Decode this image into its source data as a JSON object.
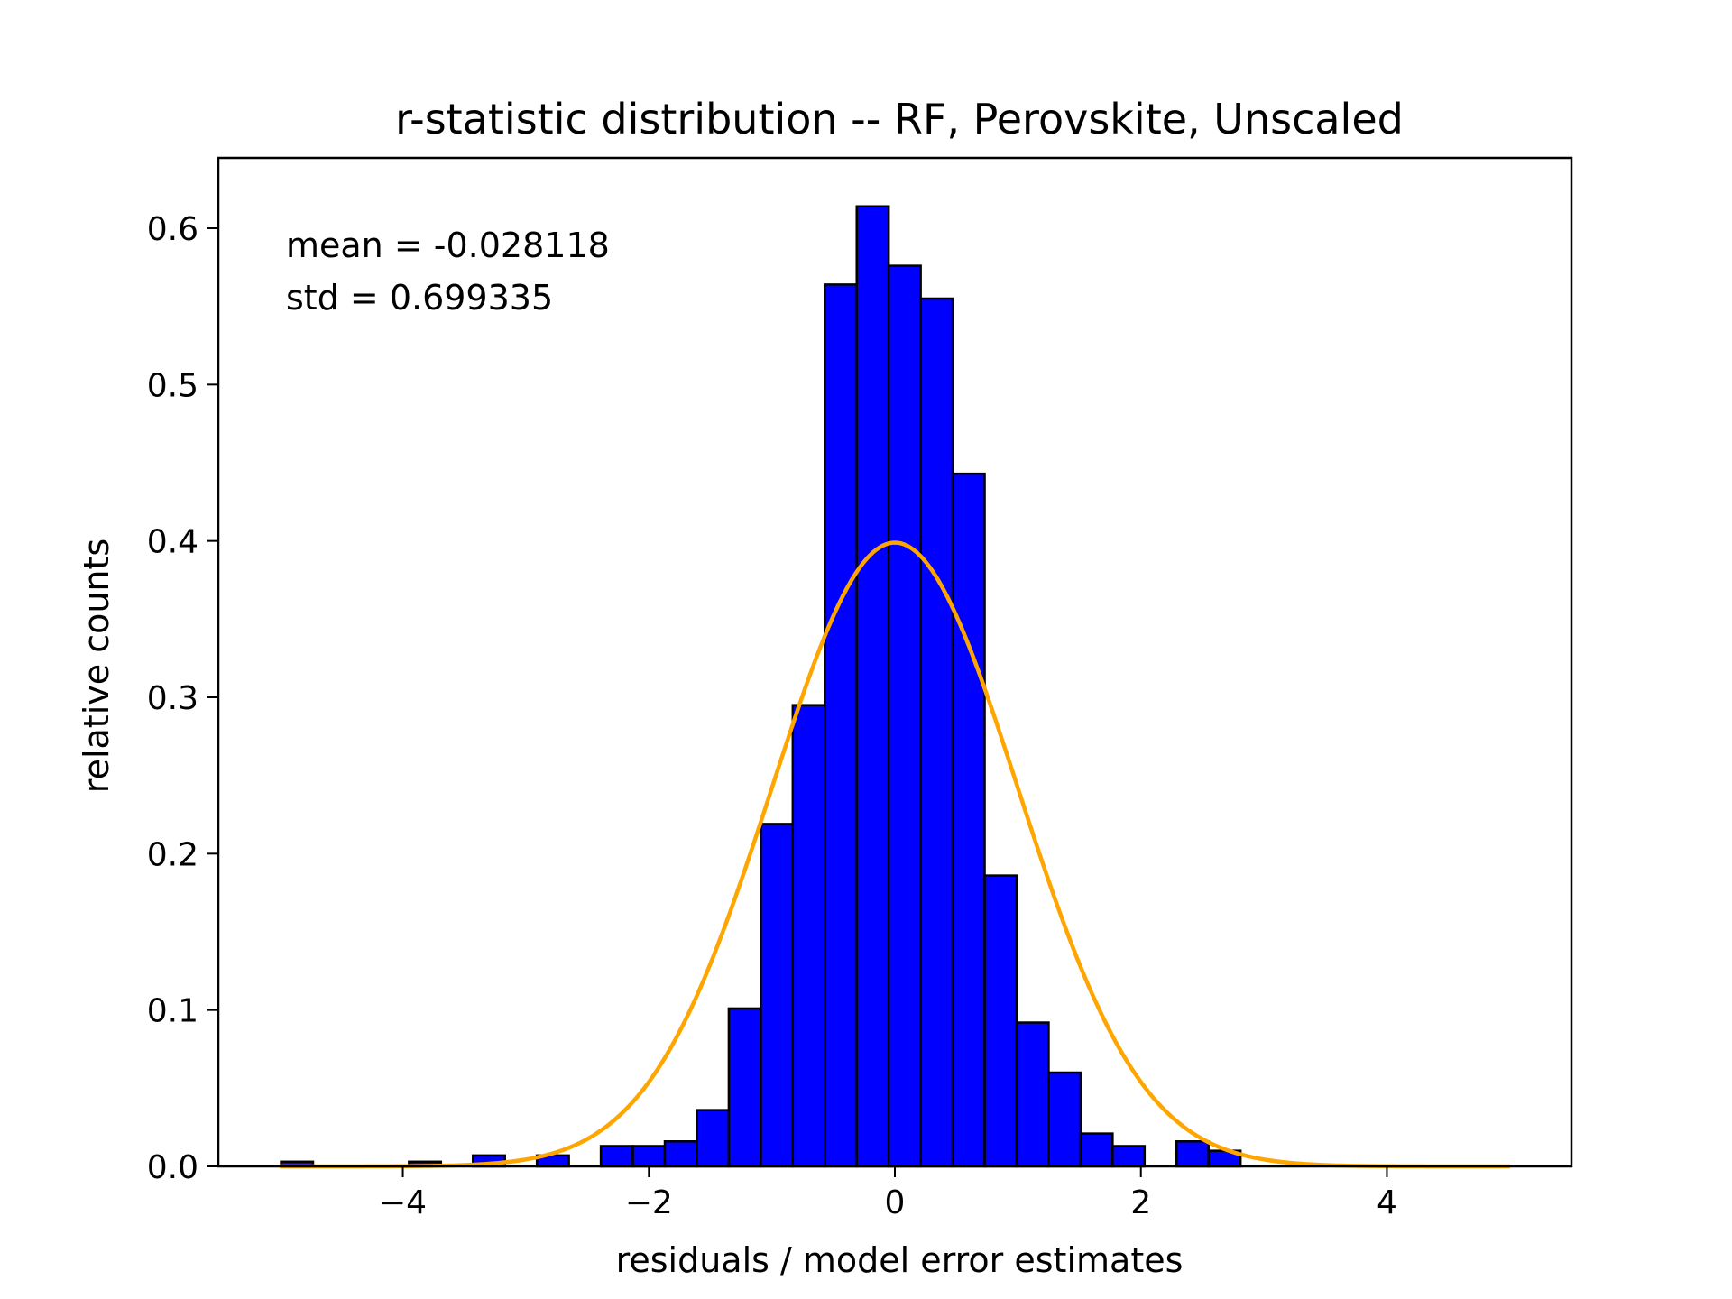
{
  "chart_data": {
    "type": "bar",
    "title": "r-statistic distribution -- RF, Perovskite, Unscaled",
    "xlabel": "residuals / model error estimates",
    "ylabel": "relative counts",
    "xlim": [
      -5.5,
      5.5
    ],
    "ylim": [
      0,
      0.645
    ],
    "xticks": [
      -4,
      -2,
      0,
      2,
      4
    ],
    "xtick_labels": [
      "−4",
      "−2",
      "0",
      "2",
      "4"
    ],
    "yticks": [
      0.0,
      0.1,
      0.2,
      0.3,
      0.4,
      0.5,
      0.6
    ],
    "ytick_labels": [
      "0.0",
      "0.1",
      "0.2",
      "0.3",
      "0.4",
      "0.5",
      "0.6"
    ],
    "grid": false,
    "annotations": {
      "mean": "mean = -0.028118",
      "std": "std = 0.699335"
    },
    "histogram": {
      "bin_edges": [
        -4.99,
        -4.73,
        -4.47,
        -4.21,
        -3.95,
        -3.69,
        -3.43,
        -3.17,
        -2.91,
        -2.65,
        -2.39,
        -2.13,
        -1.87,
        -1.61,
        -1.35,
        -1.09,
        -0.83,
        -0.57,
        -0.31,
        -0.05,
        0.21,
        0.47,
        0.73,
        0.99,
        1.25,
        1.51,
        1.77,
        2.03,
        2.29,
        2.55,
        2.81
      ],
      "values": [
        0.003,
        0,
        0,
        0,
        0.003,
        0,
        0.007,
        0,
        0.007,
        0,
        0.013,
        0.013,
        0.016,
        0.036,
        0.101,
        0.219,
        0.295,
        0.564,
        0.614,
        0.576,
        0.555,
        0.443,
        0.186,
        0.092,
        0.06,
        0.021,
        0.013,
        0,
        0.016,
        0.01
      ],
      "fill": "#0000ff",
      "edge": "#000000"
    },
    "curve": {
      "name": "normal pdf",
      "mean": 0,
      "std": 1,
      "x_range": [
        -5,
        5
      ],
      "color": "#ffa500"
    }
  }
}
